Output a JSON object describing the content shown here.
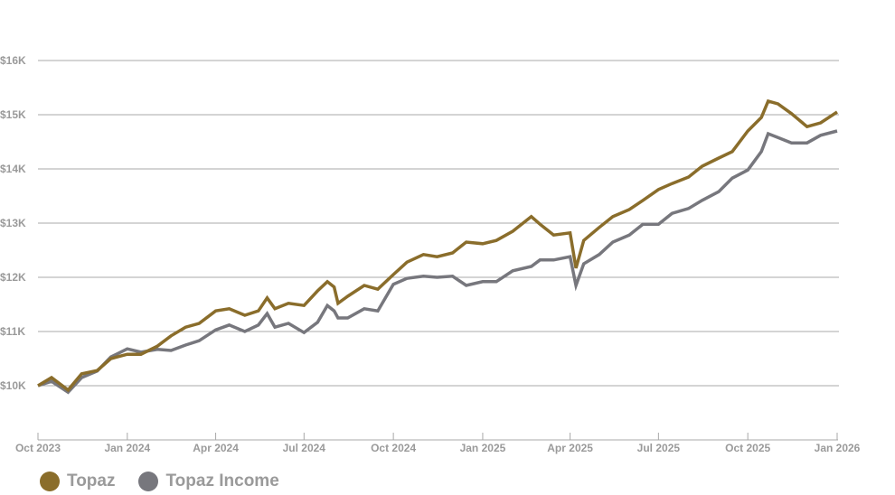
{
  "chart_data": {
    "type": "line",
    "title": "",
    "xlabel": "",
    "ylabel": "",
    "ylim": [
      9000,
      16500
    ],
    "xlim": [
      "2023-10-01",
      "2026-01-01"
    ],
    "grid": true,
    "legend_position": "bottom-left",
    "y_ticks": [
      {
        "value": 10000,
        "label": "$10K"
      },
      {
        "value": 11000,
        "label": "$11K"
      },
      {
        "value": 12000,
        "label": "$12K"
      },
      {
        "value": 13000,
        "label": "$13K"
      },
      {
        "value": 14000,
        "label": "$14K"
      },
      {
        "value": 15000,
        "label": "$15K"
      },
      {
        "value": 16000,
        "label": "$16K"
      }
    ],
    "x_ticks": [
      {
        "value": "2023-10-01",
        "label": "Oct 2023"
      },
      {
        "value": "2024-01-01",
        "label": "Jan 2024"
      },
      {
        "value": "2024-04-01",
        "label": "Apr 2024"
      },
      {
        "value": "2024-07-01",
        "label": "Jul 2024"
      },
      {
        "value": "2024-10-01",
        "label": "Oct 2024"
      },
      {
        "value": "2025-01-01",
        "label": "Jan 2025"
      },
      {
        "value": "2025-04-01",
        "label": "Apr 2025"
      },
      {
        "value": "2025-07-01",
        "label": "Jul 2025"
      },
      {
        "value": "2025-10-01",
        "label": "Oct 2025"
      },
      {
        "value": "2026-01-01",
        "label": "Jan 2026"
      }
    ],
    "x": [
      "2023-10-01",
      "2023-10-15",
      "2023-11-01",
      "2023-11-15",
      "2023-12-01",
      "2023-12-15",
      "2024-01-01",
      "2024-01-15",
      "2024-02-01",
      "2024-02-15",
      "2024-03-01",
      "2024-03-15",
      "2024-04-01",
      "2024-04-15",
      "2024-05-01",
      "2024-05-15",
      "2024-05-24",
      "2024-06-01",
      "2024-06-15",
      "2024-07-01",
      "2024-07-15",
      "2024-07-25",
      "2024-08-01",
      "2024-08-05",
      "2024-08-15",
      "2024-09-01",
      "2024-09-15",
      "2024-10-01",
      "2024-10-15",
      "2024-11-01",
      "2024-11-15",
      "2024-12-01",
      "2024-12-15",
      "2025-01-01",
      "2025-01-15",
      "2025-02-01",
      "2025-02-20",
      "2025-03-01",
      "2025-03-15",
      "2025-04-01",
      "2025-04-07",
      "2025-04-15",
      "2025-05-01",
      "2025-05-15",
      "2025-06-01",
      "2025-06-15",
      "2025-07-01",
      "2025-07-15",
      "2025-08-01",
      "2025-08-15",
      "2025-09-01",
      "2025-09-15",
      "2025-10-01",
      "2025-10-15",
      "2025-10-22",
      "2025-11-01",
      "2025-11-15",
      "2025-12-01",
      "2025-12-15",
      "2026-01-01"
    ],
    "series": [
      {
        "name": "Topaz",
        "color": "#8a6d2b",
        "values": [
          10000,
          10150,
          9920,
          10220,
          10280,
          10500,
          10580,
          10580,
          10730,
          10920,
          11080,
          11150,
          11380,
          11420,
          11300,
          11380,
          11620,
          11420,
          11520,
          11480,
          11750,
          11920,
          11820,
          11520,
          11650,
          11850,
          11780,
          12050,
          12280,
          12420,
          12380,
          12450,
          12650,
          12620,
          12680,
          12850,
          13120,
          12980,
          12780,
          12820,
          12170,
          12680,
          12920,
          13120,
          13250,
          13420,
          13620,
          13730,
          13850,
          14050,
          14200,
          14320,
          14700,
          14950,
          15250,
          15200,
          15020,
          14780,
          14850,
          15050
        ]
      },
      {
        "name": "Topaz Income",
        "color": "#77777d",
        "values": [
          10000,
          10080,
          9880,
          10150,
          10270,
          10530,
          10680,
          10620,
          10670,
          10650,
          10750,
          10830,
          11030,
          11120,
          11000,
          11120,
          11330,
          11080,
          11150,
          10980,
          11170,
          11480,
          11380,
          11250,
          11250,
          11420,
          11380,
          11870,
          11980,
          12020,
          12000,
          12020,
          11850,
          11920,
          11920,
          12120,
          12200,
          12320,
          12320,
          12380,
          11850,
          12250,
          12420,
          12650,
          12780,
          12980,
          12980,
          13180,
          13270,
          13420,
          13580,
          13830,
          13980,
          14320,
          14650,
          14580,
          14480,
          14480,
          14620,
          14700
        ]
      }
    ]
  }
}
